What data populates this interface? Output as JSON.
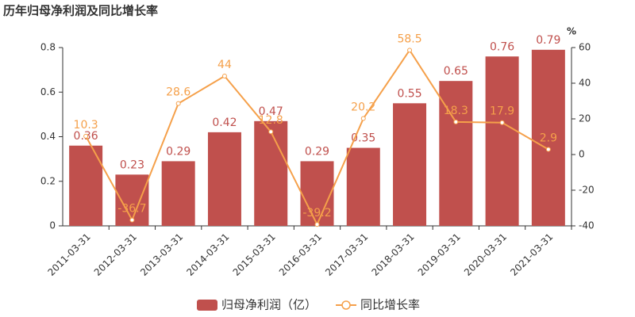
{
  "chart_data": {
    "type": "bar",
    "title": "历年归母净利润及同比增长率",
    "y2label": "%",
    "categories": [
      "2011-03-31",
      "2012-03-31",
      "2013-03-31",
      "2014-03-31",
      "2015-03-31",
      "2016-03-31",
      "2017-03-31",
      "2018-03-31",
      "2019-03-31",
      "2020-03-31",
      "2021-03-31"
    ],
    "series": [
      {
        "name": "归母净利润（亿）",
        "type": "bar",
        "color": "#c0504d",
        "label_color": "#c0504d",
        "values": [
          0.36,
          0.23,
          0.29,
          0.42,
          0.47,
          0.29,
          0.35,
          0.55,
          0.65,
          0.76,
          0.79
        ]
      },
      {
        "name": "同比增长率",
        "type": "line",
        "axis": "y2",
        "color": "#f5a04a",
        "label_color": "#f5a04a",
        "values": [
          10.3,
          -36.7,
          28.6,
          44,
          12.8,
          -39.2,
          20.2,
          58.5,
          18.3,
          17.9,
          2.9
        ]
      }
    ],
    "ylim": [
      0,
      0.8
    ],
    "yticks": [
      0,
      0.2,
      0.4,
      0.6,
      0.8
    ],
    "y2lim": [
      -40,
      60
    ],
    "y2ticks": [
      -40,
      -20,
      0,
      20,
      40,
      60
    ],
    "grid": false
  }
}
